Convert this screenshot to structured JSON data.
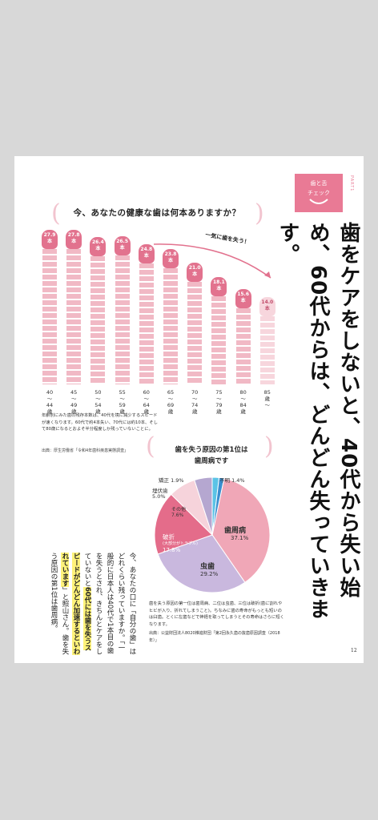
{
  "header": {
    "tag_line1": "歯と舌",
    "tag_line2": "チェック",
    "part": "PART1"
  },
  "headline": "歯をケアをしないと、40代から失い始め、60代からは、どんどん失っていきます。",
  "question": "今、あなたの健康な歯は何本ありますか？",
  "drop_label": "一気に歯を失う！",
  "chart_data": [
    {
      "type": "bar",
      "title": "今、あなたの健康な歯は何本ありますか？",
      "categories": [
        "40〜44歳",
        "45〜49歳",
        "50〜54歳",
        "55〜59歳",
        "60〜64歳",
        "65〜69歳",
        "70〜74歳",
        "75〜79歳",
        "80〜84歳",
        "85歳〜"
      ],
      "values": [
        27.9,
        27.8,
        26.4,
        26.5,
        24.8,
        23.8,
        21.0,
        18.1,
        15.6,
        14.0
      ],
      "value_labels": [
        "27.9本",
        "27.8本",
        "26.4本",
        "26.5本",
        "24.8本",
        "23.8本",
        "21.0本",
        "18.1本",
        "15.6本",
        "14.0本"
      ],
      "unit": "本",
      "ylim": [
        0,
        28
      ]
    },
    {
      "type": "pie",
      "title": "歯を失う原因の第1位は歯周病です",
      "slices": [
        {
          "name": "歯周病",
          "value": 37.1,
          "color": "#f0a7b7"
        },
        {
          "name": "虫歯",
          "value": 29.2,
          "color": "#c9b8de"
        },
        {
          "name": "破折",
          "value": 17.8,
          "color": "#e46c8a"
        },
        {
          "name": "その他",
          "value": 7.6,
          "color": "#f6d3db"
        },
        {
          "name": "埋伏歯",
          "value": 5.0,
          "color": "#b5a7d0"
        },
        {
          "name": "矯正",
          "value": 1.9,
          "color": "#5bc3e6"
        },
        {
          "name": "不明",
          "value": 1.4,
          "color": "#3a8fd0"
        }
      ]
    }
  ],
  "ages_display": [
    [
      "40",
      "〜",
      "44",
      "歳"
    ],
    [
      "45",
      "〜",
      "49",
      "歳"
    ],
    [
      "50",
      "〜",
      "54",
      "歳"
    ],
    [
      "55",
      "〜",
      "59",
      "歳"
    ],
    [
      "60",
      "〜",
      "64",
      "歳"
    ],
    [
      "65",
      "〜",
      "69",
      "歳"
    ],
    [
      "70",
      "〜",
      "74",
      "歳"
    ],
    [
      "75",
      "〜",
      "79",
      "歳"
    ],
    [
      "80",
      "〜",
      "84",
      "歳"
    ],
    [
      "85",
      "歳",
      "〜",
      ""
    ]
  ],
  "tooth_tops": [
    [
      "27.9",
      "本"
    ],
    [
      "27.8",
      "本"
    ],
    [
      "26.4",
      "本"
    ],
    [
      "26.5",
      "本"
    ],
    [
      "24.8",
      "本"
    ],
    [
      "23.8",
      "本"
    ],
    [
      "21.0",
      "本"
    ],
    [
      "18.1",
      "本"
    ],
    [
      "15.6",
      "本"
    ],
    [
      "14.0",
      "本"
    ]
  ],
  "bar_note": "年齢別にみた歯の残存本数は、40代を境に減少するスピードが速くなります。60代で約4本失い、70代には約10本、そして80歳になるとおよそ半分程度しか残っていないことに。",
  "bar_source": "出典：厚生労働省「令和4年歯科疾患実態調査」",
  "pie_title_1": "歯を失う原因の第1位は",
  "pie_title_2": "歯周病です",
  "pie_labels": {
    "perio": "歯周病",
    "perio_v": "37.1%",
    "caries": "虫歯",
    "caries_v": "29.2%",
    "fracture": "破折",
    "fracture_sub": "(大部分がトラブル)",
    "fracture_v": "17.8%",
    "other": "その他",
    "other_v": "7.6%",
    "impacted": "埋伏歯",
    "impacted_v": "5.0%",
    "ortho": "矯正 1.9%",
    "unknown": "不明 1.4%"
  },
  "pie_caption": "歯を失う原因の第一位は歯周病、二位は虫歯、三位は破折(歯に割れやヒビが入り、折れてしまうこと)。ちなみに歯の寿命がもっとも短いのは臼歯。とくに左歯などで神経を取ってしまうとその寿命はさらに短くなります。",
  "pie_source": "出典：公益財団法人8020推進財団「第2回永久歯の抜歯原因調査（2018年）」",
  "body_pre": "今、あなたの口に「自分の歯」はどれくらい残っていますか。「一般的に日本人は40代で1本目の歯を失うとされ、きちんとケアをしていないと",
  "body_hl": "60代には歯を失うスピードがどんどん加速するといわれています",
  "body_post": "」と照山さん。歯を失う原因の第1位は歯周病。",
  "page_number": "12"
}
